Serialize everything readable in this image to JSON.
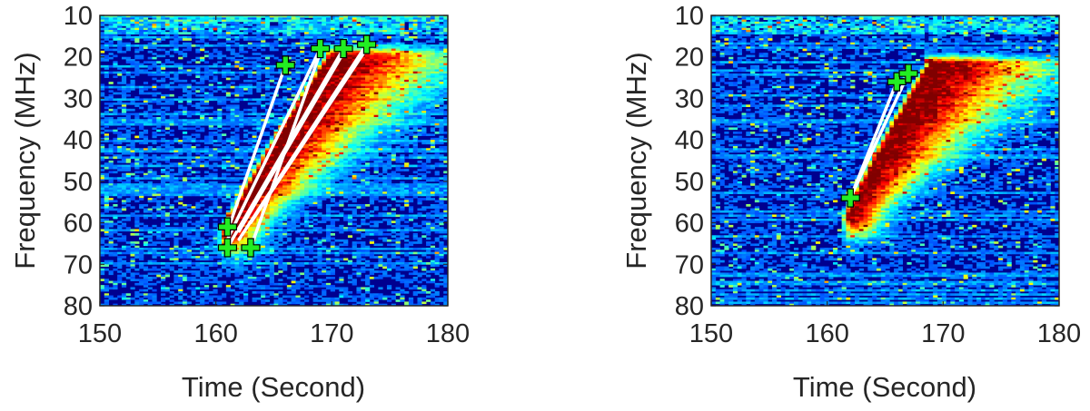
{
  "chart_data": [
    {
      "type": "heatmap",
      "xlabel": "Time (Second)",
      "ylabel": "Frequency (MHz)",
      "xlim": [
        150,
        180
      ],
      "ylim": [
        10,
        80
      ],
      "y_reversed": true,
      "xticks": [
        150,
        160,
        170,
        180
      ],
      "yticks": [
        10,
        20,
        30,
        40,
        50,
        60,
        70,
        80
      ],
      "colormap": "jet",
      "burst": {
        "t_start": 161,
        "f_start": 62,
        "t_end": 170,
        "f_end": 20
      },
      "markers": [
        {
          "x": 161,
          "y": 61
        },
        {
          "x": 161,
          "y": 66
        },
        {
          "x": 163,
          "y": 66
        },
        {
          "x": 166,
          "y": 22
        },
        {
          "x": 169,
          "y": 18
        },
        {
          "x": 171,
          "y": 18
        },
        {
          "x": 173,
          "y": 17
        }
      ],
      "lines": [
        {
          "x1": 161,
          "y1": 62,
          "x2": 166,
          "y2": 22
        },
        {
          "x1": 161,
          "y1": 64,
          "x2": 169,
          "y2": 18
        },
        {
          "x1": 161,
          "y1": 66,
          "x2": 171,
          "y2": 18
        },
        {
          "x1": 162,
          "y1": 64,
          "x2": 173,
          "y2": 17
        },
        {
          "x1": 163,
          "y1": 66,
          "x2": 169,
          "y2": 19
        },
        {
          "x1": 162,
          "y1": 62,
          "x2": 171,
          "y2": 19
        },
        {
          "x1": 163,
          "y1": 60,
          "x2": 173,
          "y2": 18
        }
      ]
    },
    {
      "type": "heatmap",
      "xlabel": "Time (Second)",
      "ylabel": "Frequency (MHz)",
      "xlim": [
        150,
        180
      ],
      "ylim": [
        10,
        80
      ],
      "y_reversed": true,
      "xticks": [
        150,
        160,
        170,
        180
      ],
      "yticks": [
        10,
        20,
        30,
        40,
        50,
        60,
        70,
        80
      ],
      "colormap": "jet",
      "burst": {
        "t_start": 162,
        "f_start": 58,
        "t_end": 169,
        "f_end": 22
      },
      "markers": [
        {
          "x": 162,
          "y": 54
        },
        {
          "x": 166,
          "y": 26
        },
        {
          "x": 167,
          "y": 24
        }
      ],
      "lines": [
        {
          "x1": 162,
          "y1": 54,
          "x2": 166,
          "y2": 26
        },
        {
          "x1": 162,
          "y1": 54,
          "x2": 167,
          "y2": 24
        }
      ]
    }
  ]
}
